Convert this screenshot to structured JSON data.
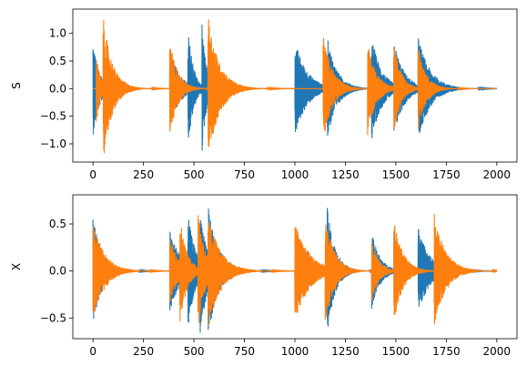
{
  "chart_data": [
    {
      "type": "line",
      "ylabel": "S",
      "xlim": [
        -100,
        2100
      ],
      "ylim": [
        -1.33,
        1.44
      ],
      "xticks": [
        0,
        250,
        500,
        750,
        1000,
        1250,
        1500,
        1750,
        2000
      ],
      "yticks": [
        -1.0,
        -0.5,
        0.0,
        0.5,
        1.0
      ],
      "ytick_labels": [
        "−1.0",
        "−0.5",
        "0.0",
        "0.5",
        "1.0"
      ],
      "grid": false,
      "series": [
        {
          "color": "#1f77b4",
          "events": [
            {
              "start": 0,
              "amp": 0.88,
              "decay": 32
            },
            {
              "start": 380,
              "amp": 0.75,
              "decay": 48
            },
            {
              "start": 470,
              "amp": 1.18,
              "decay": 26
            },
            {
              "start": 540,
              "amp": 1.18,
              "decay": 22
            },
            {
              "start": 1000,
              "amp": 0.88,
              "decay": 60
            },
            {
              "start": 1160,
              "amp": 0.95,
              "decay": 48
            },
            {
              "start": 1380,
              "amp": 0.95,
              "decay": 50
            },
            {
              "start": 1490,
              "amp": 0.88,
              "decay": 50
            },
            {
              "start": 1610,
              "amp": 0.95,
              "decay": 60
            }
          ]
        },
        {
          "color": "#ff7f0e",
          "events": [
            {
              "start": 15,
              "amp": 0.7,
              "decay": 20
            },
            {
              "start": 50,
              "amp": 1.33,
              "decay": 45
            },
            {
              "start": 380,
              "amp": 0.92,
              "decay": 38
            },
            {
              "start": 570,
              "amp": 1.35,
              "decay": 55
            },
            {
              "start": 1140,
              "amp": 1.0,
              "decay": 45
            },
            {
              "start": 1360,
              "amp": 0.85,
              "decay": 42
            },
            {
              "start": 1490,
              "amp": 0.85,
              "decay": 35
            },
            {
              "start": 1610,
              "amp": 0.78,
              "decay": 40
            }
          ]
        }
      ]
    },
    {
      "type": "line",
      "ylabel": "X",
      "xlim": [
        -100,
        2100
      ],
      "ylim": [
        -0.72,
        0.81
      ],
      "xticks": [
        0,
        250,
        500,
        750,
        1000,
        1250,
        1500,
        1750,
        2000
      ],
      "yticks": [
        -0.5,
        0.0,
        0.5
      ],
      "ytick_labels": [
        "−0.5",
        "0.0",
        "0.5"
      ],
      "grid": false,
      "series": [
        {
          "color": "#1f77b4",
          "events": [
            {
              "start": 0,
              "amp": 0.58,
              "decay": 45
            },
            {
              "start": 380,
              "amp": 0.45,
              "decay": 55
            },
            {
              "start": 470,
              "amp": 0.62,
              "decay": 38
            },
            {
              "start": 530,
              "amp": 0.68,
              "decay": 38
            },
            {
              "start": 570,
              "amp": 0.7,
              "decay": 50
            },
            {
              "start": 1000,
              "amp": 0.5,
              "decay": 65
            },
            {
              "start": 1160,
              "amp": 0.68,
              "decay": 40
            },
            {
              "start": 1380,
              "amp": 0.42,
              "decay": 42
            },
            {
              "start": 1490,
              "amp": 0.42,
              "decay": 40
            },
            {
              "start": 1610,
              "amp": 0.48,
              "decay": 55
            }
          ]
        },
        {
          "color": "#ff7f0e",
          "events": [
            {
              "start": 0,
              "amp": 0.55,
              "decay": 55
            },
            {
              "start": 380,
              "amp": 0.38,
              "decay": 40
            },
            {
              "start": 430,
              "amp": 0.58,
              "decay": 35
            },
            {
              "start": 520,
              "amp": 0.66,
              "decay": 32
            },
            {
              "start": 570,
              "amp": 0.62,
              "decay": 60
            },
            {
              "start": 1000,
              "amp": 0.55,
              "decay": 70
            },
            {
              "start": 1150,
              "amp": 0.6,
              "decay": 45
            },
            {
              "start": 1380,
              "amp": 0.32,
              "decay": 38
            },
            {
              "start": 1490,
              "amp": 0.55,
              "decay": 45
            },
            {
              "start": 1690,
              "amp": 0.62,
              "decay": 55
            }
          ]
        }
      ]
    }
  ]
}
